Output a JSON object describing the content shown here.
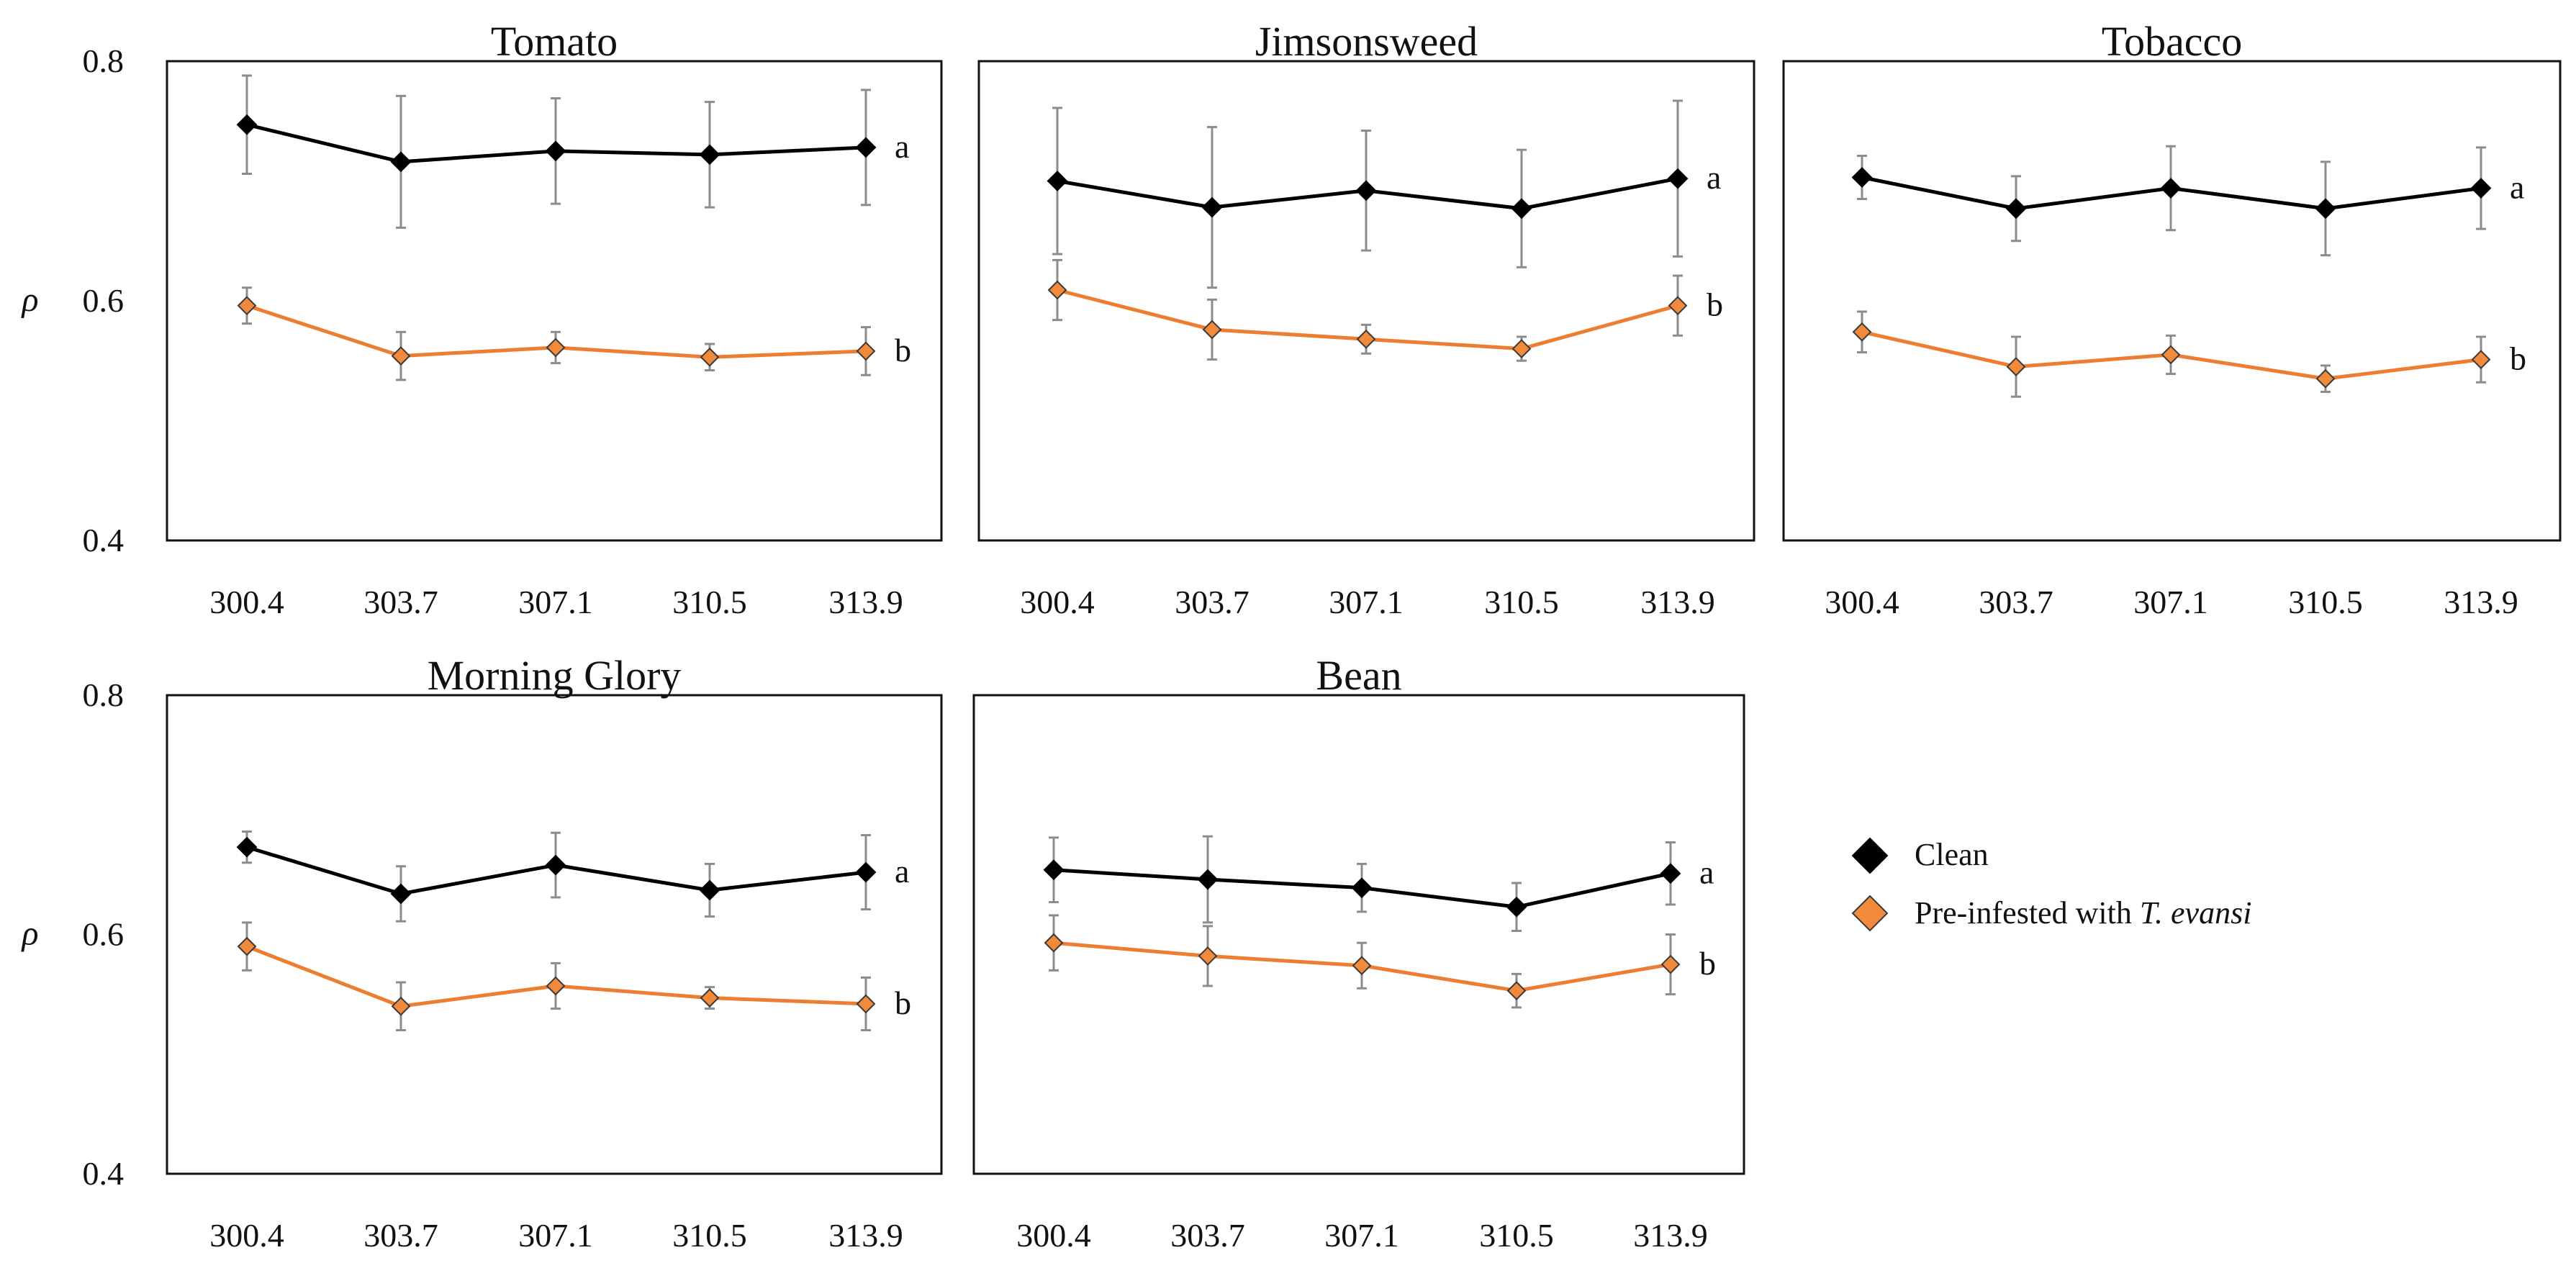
{
  "chart_data": [
    {
      "type": "line",
      "title": "Tomato",
      "ylabel": "ρ",
      "ylim": [
        0.4,
        0.8
      ],
      "yticks": [
        "0.4",
        "0.6",
        "0.8"
      ],
      "categories": [
        "300.4",
        "303.7",
        "307.1",
        "310.5",
        "313.9"
      ],
      "series": [
        {
          "name": "Clean",
          "values": [
            0.747,
            0.716,
            0.725,
            0.722,
            0.728
          ],
          "errors": [
            0.041,
            0.055,
            0.044,
            0.044,
            0.048
          ],
          "label": "a"
        },
        {
          "name": "Pre-infested with T. evansi",
          "values": [
            0.596,
            0.554,
            0.561,
            0.553,
            0.558
          ],
          "errors": [
            0.015,
            0.02,
            0.013,
            0.011,
            0.02
          ],
          "label": "b"
        }
      ]
    },
    {
      "type": "line",
      "title": "Jimsonsweed",
      "ylim": [
        0.4,
        0.8
      ],
      "categories": [
        "300.4",
        "303.7",
        "307.1",
        "310.5",
        "313.9"
      ],
      "series": [
        {
          "name": "Clean",
          "values": [
            0.7,
            0.678,
            0.692,
            0.677,
            0.702
          ],
          "errors": [
            0.061,
            0.067,
            0.05,
            0.049,
            0.065
          ],
          "label": "a"
        },
        {
          "name": "Pre-infested with T. evansi",
          "values": [
            0.609,
            0.576,
            0.568,
            0.56,
            0.596
          ],
          "errors": [
            0.025,
            0.025,
            0.012,
            0.01,
            0.025
          ],
          "label": "b"
        }
      ]
    },
    {
      "type": "line",
      "title": "Tobacco",
      "ylim": [
        0.4,
        0.8
      ],
      "categories": [
        "300.4",
        "303.7",
        "307.1",
        "310.5",
        "313.9"
      ],
      "series": [
        {
          "name": "Clean",
          "values": [
            0.703,
            0.677,
            0.694,
            0.677,
            0.694
          ],
          "errors": [
            0.018,
            0.027,
            0.035,
            0.039,
            0.034
          ],
          "label": "a"
        },
        {
          "name": "Pre-infested with T. evansi",
          "values": [
            0.574,
            0.545,
            0.555,
            0.535,
            0.551
          ],
          "errors": [
            0.017,
            0.025,
            0.016,
            0.011,
            0.019
          ],
          "label": "b"
        }
      ]
    },
    {
      "type": "line",
      "title": "Morning Glory",
      "ylabel": "ρ",
      "ylim": [
        0.4,
        0.8
      ],
      "yticks": [
        "0.4",
        "0.6",
        "0.8"
      ],
      "categories": [
        "300.4",
        "303.7",
        "307.1",
        "310.5",
        "313.9"
      ],
      "series": [
        {
          "name": "Clean",
          "values": [
            0.673,
            0.634,
            0.658,
            0.637,
            0.652
          ],
          "errors": [
            0.013,
            0.023,
            0.027,
            0.022,
            0.031
          ],
          "label": "a"
        },
        {
          "name": "Pre-infested with T. evansi",
          "values": [
            0.59,
            0.54,
            0.557,
            0.547,
            0.542
          ],
          "errors": [
            0.02,
            0.02,
            0.019,
            0.009,
            0.022
          ],
          "label": "b"
        }
      ]
    },
    {
      "type": "line",
      "title": "Bean",
      "ylim": [
        0.4,
        0.8
      ],
      "categories": [
        "300.4",
        "303.7",
        "307.1",
        "310.5",
        "313.9"
      ],
      "series": [
        {
          "name": "Clean",
          "values": [
            0.654,
            0.646,
            0.639,
            0.623,
            0.651
          ],
          "errors": [
            0.027,
            0.036,
            0.02,
            0.02,
            0.026
          ],
          "label": "a"
        },
        {
          "name": "Pre-infested with T. evansi",
          "values": [
            0.593,
            0.582,
            0.574,
            0.553,
            0.575
          ],
          "errors": [
            0.023,
            0.025,
            0.019,
            0.014,
            0.025
          ],
          "label": "b"
        }
      ]
    }
  ],
  "legend": {
    "items": [
      {
        "label": "Clean"
      },
      {
        "label": "Pre-infested with ",
        "label_italic": "T. evansi"
      }
    ]
  },
  "colors": {
    "clean": "#000000",
    "infested_fill": "#f28a3b",
    "infested_line": "#ed7d31",
    "error_bar": "#8c8c8c",
    "frame": "#111111"
  }
}
